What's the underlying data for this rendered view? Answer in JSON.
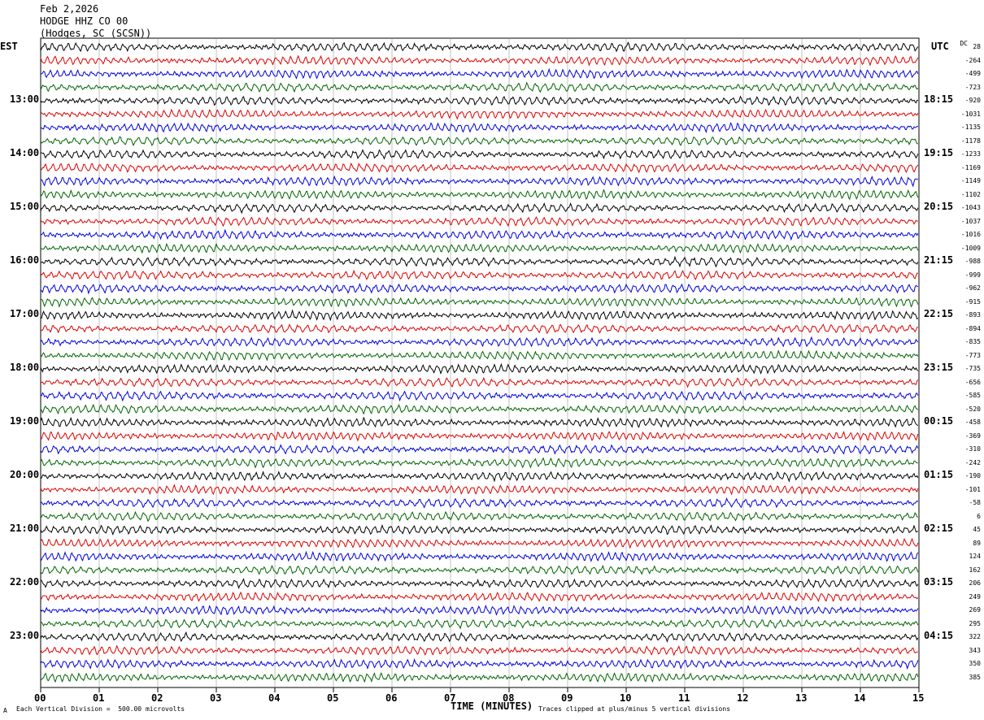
{
  "header": {
    "date": "Feb 2,2026",
    "station": "HODGE HHZ CO 00",
    "location": "(Hodges, SC (SCSN))"
  },
  "left_tz": "EST",
  "right_tz": "UTC",
  "dc_label": "DC",
  "footer": {
    "scale": "Each Vertical Division =  500.00 microvolts",
    "clip": "Traces clipped at plus/minus 5 vertical divisions",
    "corner": "A"
  },
  "chart_data": {
    "type": "line",
    "title": "",
    "xlabel": "TIME (MINUTES)",
    "ylabel": "",
    "x_ticks": [
      "00",
      "01",
      "02",
      "03",
      "04",
      "05",
      "06",
      "07",
      "08",
      "09",
      "10",
      "11",
      "12",
      "13",
      "14",
      "15"
    ],
    "xlim": [
      0,
      15
    ],
    "grid": "vertical lines at each minute",
    "trace_colors": [
      "#000000",
      "#dd0000",
      "#0000dd",
      "#006400"
    ],
    "left_time_labels": [
      {
        "row": 4,
        "label": "13:00"
      },
      {
        "row": 8,
        "label": "14:00"
      },
      {
        "row": 12,
        "label": "15:00"
      },
      {
        "row": 16,
        "label": "16:00"
      },
      {
        "row": 20,
        "label": "17:00"
      },
      {
        "row": 24,
        "label": "18:00"
      },
      {
        "row": 28,
        "label": "19:00"
      },
      {
        "row": 32,
        "label": "20:00"
      },
      {
        "row": 36,
        "label": "21:00"
      },
      {
        "row": 40,
        "label": "22:00"
      },
      {
        "row": 44,
        "label": "23:00"
      }
    ],
    "right_time_labels": [
      {
        "row": 4,
        "label": "18:15"
      },
      {
        "row": 8,
        "label": "19:15"
      },
      {
        "row": 12,
        "label": "20:15"
      },
      {
        "row": 16,
        "label": "21:15"
      },
      {
        "row": 20,
        "label": "22:15"
      },
      {
        "row": 24,
        "label": "23:15"
      },
      {
        "row": 28,
        "label": "00:15"
      },
      {
        "row": 32,
        "label": "01:15"
      },
      {
        "row": 36,
        "label": "02:15"
      },
      {
        "row": 40,
        "label": "03:15"
      },
      {
        "row": 44,
        "label": "04:15"
      }
    ],
    "dc_offsets": [
      "28",
      "-264",
      "-499",
      "-723",
      "-920",
      "-1031",
      "-1135",
      "-1178",
      "-1233",
      "-1169",
      "-1149",
      "-1102",
      "-1043",
      "-1037",
      "-1016",
      "-1009",
      "-988",
      "-999",
      "-962",
      "-915",
      "-893",
      "-894",
      "-835",
      "-773",
      "-735",
      "-656",
      "-585",
      "-520",
      "-458",
      "-369",
      "-310",
      "-242",
      "-190",
      "-101",
      "-58",
      "6",
      "45",
      "89",
      "124",
      "162",
      "206",
      "249",
      "269",
      "295",
      "322",
      "343",
      "350",
      "385"
    ]
  }
}
